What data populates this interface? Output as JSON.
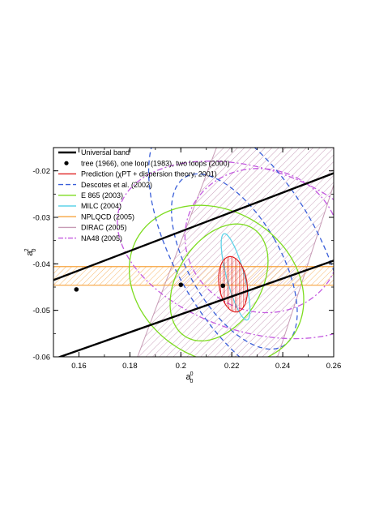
{
  "chart_data": {
    "type": "scatter",
    "xlabel": "a",
    "xlabel_sub": "0",
    "xlabel_sup": "0",
    "ylabel": "a",
    "ylabel_sub": "0",
    "ylabel_sup": "2",
    "xlim": [
      0.15,
      0.26
    ],
    "ylim": [
      -0.06,
      -0.015
    ],
    "x_ticks": [
      0.16,
      0.18,
      0.2,
      0.22,
      0.24,
      0.26
    ],
    "x_tick_labels": [
      "0.16",
      "0.18",
      "0.2",
      "0.22",
      "0.24",
      "0.26"
    ],
    "y_ticks": [
      -0.06,
      -0.05,
      -0.04,
      -0.03,
      -0.02
    ],
    "y_tick_labels": [
      "-0.06",
      "-0.05",
      "-0.04",
      "-0.03",
      "-0.02"
    ],
    "grid": false,
    "legend_position": "top-left",
    "legend": [
      {
        "label": "Universal band",
        "color": "#000000",
        "style": "solid-thick"
      },
      {
        "label": "tree (1966), one loop (1983), two loops (2000)",
        "color": "#000000",
        "style": "dot"
      },
      {
        "label": "Prediction (χPT + dispersion theory, 2001)",
        "color": "#e02020",
        "style": "solid"
      },
      {
        "label": "Descotes et al. (2002)",
        "color": "#3a5fd9",
        "style": "dashed"
      },
      {
        "label": "E 865 (2003)",
        "color": "#7ddc1f",
        "style": "solid"
      },
      {
        "label": "MILC (2004)",
        "color": "#5fd3e8",
        "style": "solid"
      },
      {
        "label": "NPLQCD (2005)",
        "color": "#f7a541",
        "style": "solid"
      },
      {
        "label": "DIRAC (2005)",
        "color": "#c79bb5",
        "style": "solid"
      },
      {
        "label": "NA48 (2005)",
        "color": "#c45be0",
        "style": "dashdot"
      }
    ],
    "universal_band": {
      "upper": [
        [
          0.15,
          -0.0435
        ],
        [
          0.26,
          -0.0205
        ]
      ],
      "lower": [
        [
          0.15,
          -0.0605
        ],
        [
          0.26,
          -0.0393
        ]
      ]
    },
    "points": [
      {
        "x": 0.159,
        "y": -0.0455
      },
      {
        "x": 0.2,
        "y": -0.0445
      },
      {
        "x": 0.2165,
        "y": -0.0447
      }
    ],
    "nplqcd_band": {
      "y_min": -0.0446,
      "y_max": -0.0406
    },
    "dirac_band": {
      "upper_edge": [
        [
          0.207,
          -0.015
        ],
        [
          0.26,
          -0.0295
        ]
      ],
      "lower_edge": [
        [
          0.183,
          -0.06
        ],
        [
          0.238,
          -0.06
        ]
      ],
      "polygon": [
        [
          0.183,
          -0.06
        ],
        [
          0.214,
          -0.015
        ],
        [
          0.26,
          -0.015
        ],
        [
          0.26,
          -0.023
        ],
        [
          0.238,
          -0.06
        ]
      ]
    },
    "prediction_ellipse": {
      "cx": 0.2205,
      "cy": -0.0444,
      "rx": 0.0055,
      "ry": 0.001,
      "angle_deg": 8
    },
    "milc_ellipse": {
      "cx": 0.2215,
      "cy": -0.0428,
      "rx": 0.0035,
      "ry": 0.0016,
      "angle_deg": 15
    },
    "descotes_ellipses": [
      {
        "cx": 0.226,
        "cy": -0.0375,
        "rx": 0.028,
        "ry": 0.0055,
        "angle_deg": 30
      },
      {
        "cx": 0.221,
        "cy": -0.0395,
        "rx": 0.018,
        "ry": 0.0035,
        "angle_deg": 30
      }
    ],
    "e865_contours": [
      {
        "cx": 0.214,
        "cy": -0.0445,
        "rx": 0.029,
        "ry": 0.0033,
        "angle_deg": 58
      },
      {
        "cx": 0.215,
        "cy": -0.044,
        "rx": 0.025,
        "ry": 0.0015,
        "angle_deg": 58
      }
    ],
    "na48_ellipses": [
      {
        "cx": 0.228,
        "cy": -0.037,
        "rx": 0.032,
        "ry": 0.005,
        "angle_deg": 72
      },
      {
        "cx": 0.232,
        "cy": -0.035,
        "rx": 0.028,
        "ry": 0.0028,
        "angle_deg": 72
      }
    ]
  }
}
